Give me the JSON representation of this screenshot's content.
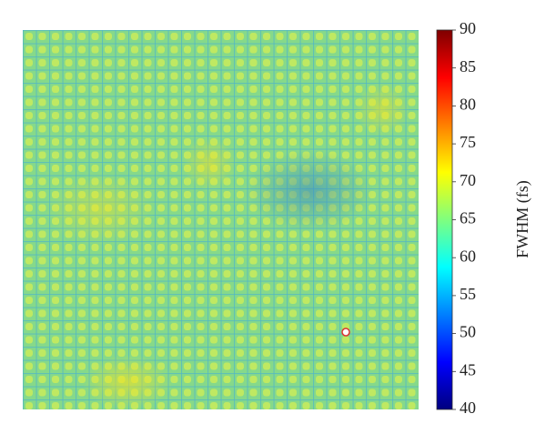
{
  "chart_data": {
    "type": "heatmap",
    "colormap": "jet",
    "colorbar_label": "FWHM (fs)",
    "clim": [
      40,
      90
    ],
    "cticks": [
      40,
      45,
      50,
      55,
      60,
      65,
      70,
      75,
      80,
      85,
      90
    ]
  }
}
